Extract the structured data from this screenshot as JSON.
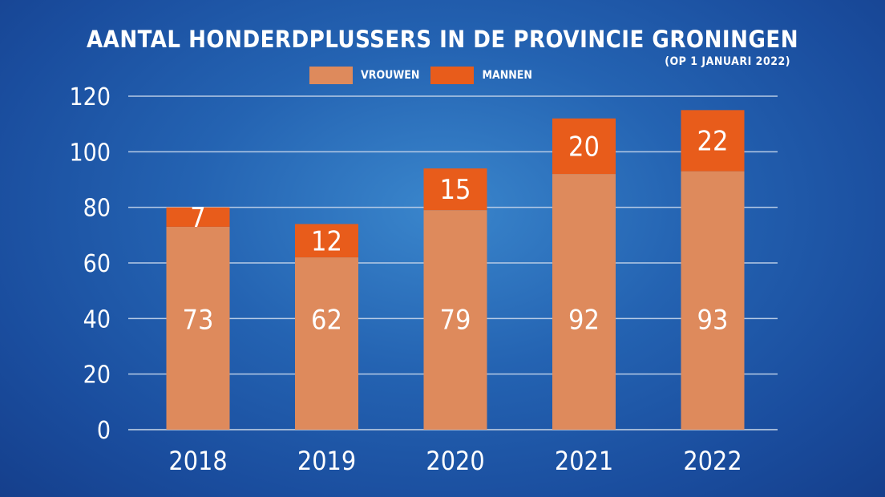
{
  "colors": {
    "vrouwen": "#de8a5c",
    "mannen": "#e85c1b",
    "gridline": "#b7cbe6",
    "baseline": "#9fb6d6"
  },
  "chart_data": {
    "type": "bar",
    "stacked": true,
    "title": "AANTAL HONDERDPLUSSERS IN DE PROVINCIE GRONINGEN",
    "subtitle": "(OP 1 JANUARI 2022)",
    "categories": [
      "2018",
      "2019",
      "2020",
      "2021",
      "2022"
    ],
    "series": [
      {
        "name": "VROUWEN",
        "values": [
          73,
          62,
          79,
          92,
          93
        ]
      },
      {
        "name": "MANNEN",
        "values": [
          7,
          12,
          15,
          20,
          22
        ]
      }
    ],
    "ylim": [
      0,
      120
    ],
    "yticks": [
      "0",
      "20",
      "40",
      "60",
      "80",
      "100",
      "120"
    ],
    "grid": true,
    "legend_position": "top-center"
  }
}
